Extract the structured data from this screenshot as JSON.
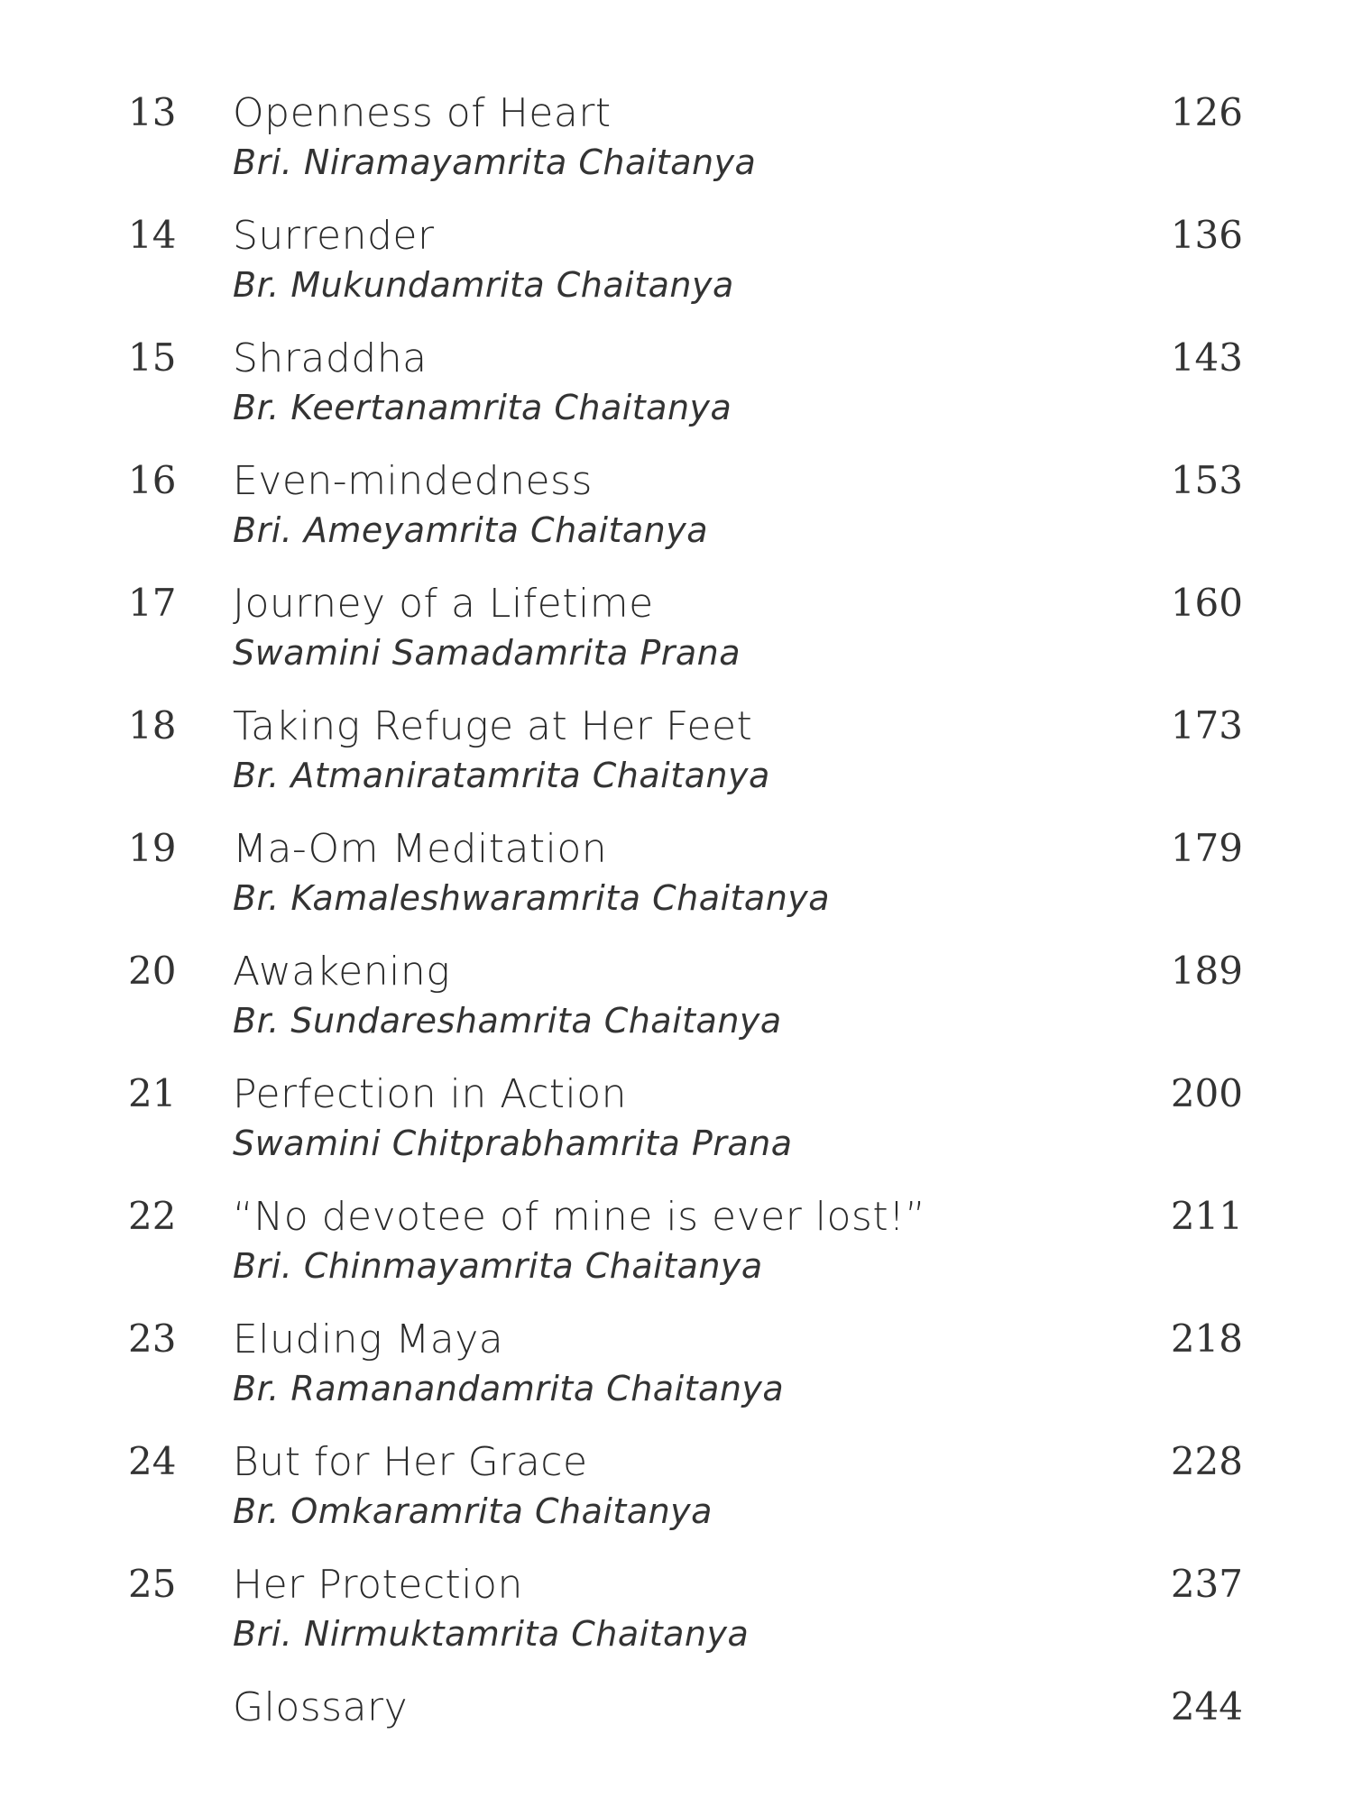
{
  "entries": [
    {
      "number": "13",
      "title": "Openness of Heart",
      "author": "Bri. Niramayamrita Chaitanya",
      "page": "126"
    },
    {
      "number": "14",
      "title": "Surrender",
      "author": "Br. Mukundamrita Chaitanya",
      "page": "136"
    },
    {
      "number": "15",
      "title": "Shraddha",
      "author": "Br. Keertanamrita Chaitanya",
      "page": "143"
    },
    {
      "number": "16",
      "title": "Even-mindedness",
      "author": "Bri. Ameyamrita Chaitanya",
      "page": "153"
    },
    {
      "number": "17",
      "title": "Journey of a Lifetime",
      "author": "Swamini Samadamrita Prana",
      "page": "160"
    },
    {
      "number": "18",
      "title": "Taking Refuge at Her Feet",
      "author": "Br. Atmaniratamrita Chaitanya",
      "page": "173"
    },
    {
      "number": "19",
      "title": "Ma-Om Meditation",
      "author": "Br. Kamaleshwaramrita Chaitanya",
      "page": "179"
    },
    {
      "number": "20",
      "title": "Awakening",
      "author": "Br. Sundareshamrita Chaitanya",
      "page": "189"
    },
    {
      "number": "21",
      "title": "Perfection in Action",
      "author": "Swamini Chitprabhamrita Prana",
      "page": "200"
    },
    {
      "number": "22",
      "title": "“No devotee of mine is ever lost!”",
      "author": "Bri. Chinmayamrita Chaitanya",
      "page": "211"
    },
    {
      "number": "23",
      "title": "Eluding Maya",
      "author": "Br. Ramanandamrita Chaitanya",
      "page": "218"
    },
    {
      "number": "24",
      "title": "But for Her Grace",
      "author": "Br. Omkaramrita Chaitanya",
      "page": "228"
    },
    {
      "number": "25",
      "title": "Her Protection",
      "author": "Bri. Nirmuktamrita Chaitanya",
      "page": "237"
    },
    {
      "number": "",
      "title": "Glossary",
      "author": "",
      "page": "244"
    }
  ]
}
